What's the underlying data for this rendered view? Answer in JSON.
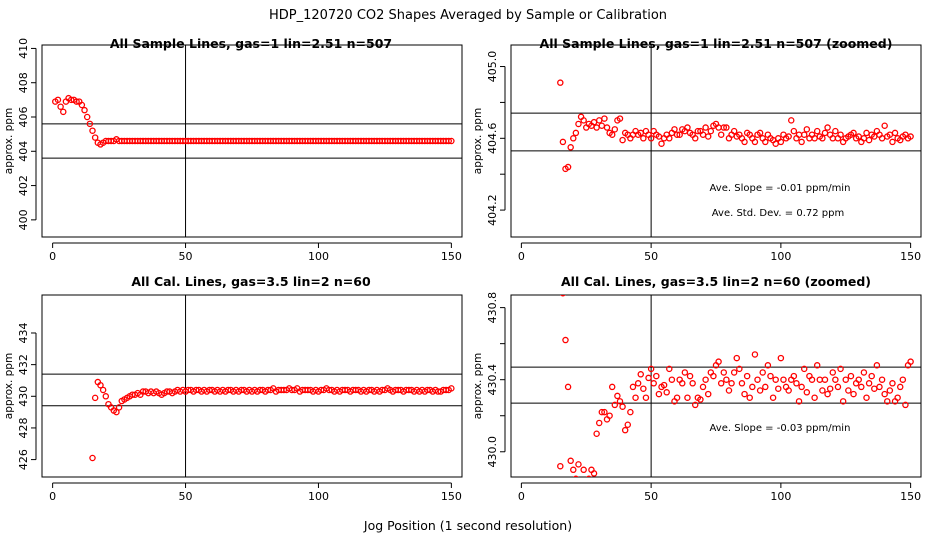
{
  "title": "HDP_120720  CO2 Shapes Averaged by Sample or Calibration",
  "xlabel": "Jog Position (1 second resolution)",
  "chart_data": [
    {
      "type": "scatter",
      "title": "All Sample Lines, gas=1 lin=2.51 n=507",
      "ylabel": "approx. ppm",
      "xlim": [
        -4,
        154
      ],
      "ylim": [
        399.0,
        410.2
      ],
      "xticks": [
        0,
        50,
        100,
        150
      ],
      "yticks": [
        400,
        402,
        404,
        406,
        408,
        410
      ],
      "ytick_labels": [
        "400",
        "402",
        "404",
        "406",
        "408",
        "410"
      ],
      "hlines": [
        405.6,
        403.6
      ],
      "vline": 50,
      "annotations": [],
      "x": [
        1,
        2,
        3,
        4,
        5,
        6,
        7,
        8,
        9,
        10,
        11,
        12,
        13,
        14,
        15,
        16,
        17,
        18,
        19,
        20,
        21,
        22,
        23,
        24,
        25,
        26,
        27,
        28,
        29,
        30,
        31,
        32,
        33,
        34,
        35,
        36,
        37,
        38,
        39,
        40,
        41,
        42,
        43,
        44,
        45,
        46,
        47,
        48,
        49,
        50,
        51,
        52,
        53,
        54,
        55,
        56,
        57,
        58,
        59,
        60,
        61,
        62,
        63,
        64,
        65,
        66,
        67,
        68,
        69,
        70,
        71,
        72,
        73,
        74,
        75,
        76,
        77,
        78,
        79,
        80,
        81,
        82,
        83,
        84,
        85,
        86,
        87,
        88,
        89,
        90,
        91,
        92,
        93,
        94,
        95,
        96,
        97,
        98,
        99,
        100,
        101,
        102,
        103,
        104,
        105,
        106,
        107,
        108,
        109,
        110,
        111,
        112,
        113,
        114,
        115,
        116,
        117,
        118,
        119,
        120,
        121,
        122,
        123,
        124,
        125,
        126,
        127,
        128,
        129,
        130,
        131,
        132,
        133,
        134,
        135,
        136,
        137,
        138,
        139,
        140,
        141,
        142,
        143,
        144,
        145,
        146,
        147,
        148,
        149,
        150
      ],
      "y": [
        406.9,
        407.0,
        406.6,
        406.3,
        406.9,
        407.1,
        407.0,
        407.0,
        406.9,
        406.9,
        406.7,
        406.4,
        406.0,
        405.6,
        405.2,
        404.8,
        404.5,
        404.4,
        404.5,
        404.6,
        404.6,
        404.6,
        404.6,
        404.7,
        404.6,
        404.6,
        404.6,
        404.6,
        404.6,
        404.6,
        404.6,
        404.6,
        404.6,
        404.6,
        404.6,
        404.6,
        404.6,
        404.6,
        404.6,
        404.6,
        404.6,
        404.6,
        404.6,
        404.6,
        404.6,
        404.6,
        404.6,
        404.6,
        404.6,
        404.6,
        404.6,
        404.6,
        404.6,
        404.6,
        404.6,
        404.6,
        404.6,
        404.6,
        404.6,
        404.6,
        404.6,
        404.6,
        404.6,
        404.6,
        404.6,
        404.6,
        404.6,
        404.6,
        404.6,
        404.6,
        404.6,
        404.6,
        404.6,
        404.6,
        404.6,
        404.6,
        404.6,
        404.6,
        404.6,
        404.6,
        404.6,
        404.6,
        404.6,
        404.6,
        404.6,
        404.6,
        404.6,
        404.6,
        404.6,
        404.6,
        404.6,
        404.6,
        404.6,
        404.6,
        404.6,
        404.6,
        404.6,
        404.6,
        404.6,
        404.6,
        404.6,
        404.6,
        404.6,
        404.6,
        404.6,
        404.6,
        404.6,
        404.6,
        404.6,
        404.6,
        404.6,
        404.6,
        404.6,
        404.6,
        404.6,
        404.6,
        404.6,
        404.6,
        404.6,
        404.6,
        404.6,
        404.6,
        404.6,
        404.6,
        404.6,
        404.6,
        404.6,
        404.6,
        404.6,
        404.6,
        404.6,
        404.6,
        404.6,
        404.6,
        404.6,
        404.6,
        404.6,
        404.6,
        404.6,
        404.6,
        404.6,
        404.6,
        404.6,
        404.6,
        404.6,
        404.6,
        404.6,
        404.6,
        404.6,
        404.6
      ]
    },
    {
      "type": "scatter",
      "title": "All Sample Lines, gas=1 lin=2.51 n=507 (zoomed)",
      "ylabel": "approx. ppm",
      "xlim": [
        -4,
        154
      ],
      "ylim": [
        404.05,
        405.12
      ],
      "xticks": [
        0,
        50,
        100,
        150
      ],
      "yticks": [
        404.2,
        404.4,
        404.6,
        404.8,
        405.0
      ],
      "ytick_labels": [
        "404.2",
        "",
        "404.6",
        "",
        "405.0"
      ],
      "hlines": [
        404.74,
        404.53
      ],
      "vline": 50,
      "annotations": [
        "Ave. Slope =  -0.01  ppm/min",
        "Ave. Std. Dev. =  0.72  ppm"
      ],
      "x": [
        15,
        16,
        17,
        18,
        19,
        20,
        21,
        22,
        23,
        24,
        25,
        26,
        27,
        28,
        29,
        30,
        31,
        32,
        33,
        34,
        35,
        36,
        37,
        38,
        39,
        40,
        41,
        42,
        43,
        44,
        45,
        46,
        47,
        48,
        49,
        50,
        51,
        52,
        53,
        54,
        55,
        56,
        57,
        58,
        59,
        60,
        61,
        62,
        63,
        64,
        65,
        66,
        67,
        68,
        69,
        70,
        71,
        72,
        73,
        74,
        75,
        76,
        77,
        78,
        79,
        80,
        81,
        82,
        83,
        84,
        85,
        86,
        87,
        88,
        89,
        90,
        91,
        92,
        93,
        94,
        95,
        96,
        97,
        98,
        99,
        100,
        101,
        102,
        103,
        104,
        105,
        106,
        107,
        108,
        109,
        110,
        111,
        112,
        113,
        114,
        115,
        116,
        117,
        118,
        119,
        120,
        121,
        122,
        123,
        124,
        125,
        126,
        127,
        128,
        129,
        130,
        131,
        132,
        133,
        134,
        135,
        136,
        137,
        138,
        139,
        140,
        141,
        142,
        143,
        144,
        145,
        146,
        147,
        148,
        149,
        150
      ],
      "y": [
        404.91,
        404.58,
        404.43,
        404.44,
        404.55,
        404.6,
        404.63,
        404.68,
        404.72,
        404.7,
        404.66,
        404.68,
        404.67,
        404.69,
        404.66,
        404.7,
        404.67,
        404.71,
        404.66,
        404.63,
        404.62,
        404.65,
        404.7,
        404.71,
        404.59,
        404.63,
        404.62,
        404.6,
        404.62,
        404.64,
        404.62,
        404.63,
        404.6,
        404.64,
        404.62,
        404.6,
        404.64,
        404.62,
        404.61,
        404.57,
        404.6,
        404.62,
        404.6,
        404.63,
        404.65,
        404.62,
        404.62,
        404.65,
        404.64,
        404.66,
        404.63,
        404.62,
        404.6,
        404.64,
        404.64,
        404.62,
        404.66,
        404.61,
        404.64,
        404.67,
        404.68,
        404.66,
        404.62,
        404.66,
        404.66,
        404.6,
        404.62,
        404.64,
        404.61,
        404.62,
        404.6,
        404.58,
        404.63,
        404.62,
        404.6,
        404.58,
        404.62,
        404.63,
        404.6,
        404.58,
        404.62,
        404.6,
        404.59,
        404.57,
        404.6,
        404.58,
        404.62,
        404.6,
        404.61,
        404.7,
        404.64,
        404.6,
        404.62,
        404.58,
        404.62,
        404.65,
        404.6,
        404.62,
        404.6,
        404.64,
        404.61,
        404.6,
        404.63,
        404.66,
        404.62,
        404.6,
        404.64,
        404.6,
        404.62,
        404.58,
        404.6,
        404.61,
        404.62,
        404.63,
        404.6,
        404.61,
        404.58,
        404.6,
        404.63,
        404.59,
        404.62,
        404.61,
        404.64,
        404.62,
        404.6,
        404.67,
        404.61,
        404.62,
        404.58,
        404.63,
        404.6,
        404.59,
        404.61,
        404.62,
        404.6,
        404.61
      ]
    },
    {
      "type": "scatter",
      "title": "All Cal. Lines, gas=3.5 lin=2 n=60",
      "ylabel": "approx. ppm",
      "xlim": [
        -4,
        154
      ],
      "ylim": [
        424.9,
        436.4
      ],
      "xticks": [
        0,
        50,
        100,
        150
      ],
      "yticks": [
        426,
        428,
        430,
        432,
        434
      ],
      "ytick_labels": [
        "426",
        "428",
        "430",
        "432",
        "434"
      ],
      "hlines": [
        431.4,
        429.4
      ],
      "vline": 50,
      "annotations": [],
      "x": [
        15,
        16,
        17,
        18,
        19,
        20,
        21,
        22,
        23,
        24,
        25,
        26,
        27,
        28,
        29,
        30,
        31,
        32,
        33,
        34,
        35,
        36,
        37,
        38,
        39,
        40,
        41,
        42,
        43,
        44,
        45,
        46,
        47,
        48,
        49,
        50,
        51,
        52,
        53,
        54,
        55,
        56,
        57,
        58,
        59,
        60,
        61,
        62,
        63,
        64,
        65,
        66,
        67,
        68,
        69,
        70,
        71,
        72,
        73,
        74,
        75,
        76,
        77,
        78,
        79,
        80,
        81,
        82,
        83,
        84,
        85,
        86,
        87,
        88,
        89,
        90,
        91,
        92,
        93,
        94,
        95,
        96,
        97,
        98,
        99,
        100,
        101,
        102,
        103,
        104,
        105,
        106,
        107,
        108,
        109,
        110,
        111,
        112,
        113,
        114,
        115,
        116,
        117,
        118,
        119,
        120,
        121,
        122,
        123,
        124,
        125,
        126,
        127,
        128,
        129,
        130,
        131,
        132,
        133,
        134,
        135,
        136,
        137,
        138,
        139,
        140,
        141,
        142,
        143,
        144,
        145,
        146,
        147,
        148,
        149,
        150
      ],
      "y": [
        426.1,
        429.9,
        430.9,
        430.7,
        430.4,
        430.0,
        429.5,
        429.3,
        429.1,
        429.0,
        429.3,
        429.7,
        429.8,
        429.9,
        430.0,
        430.1,
        430.1,
        430.2,
        430.1,
        430.3,
        430.3,
        430.2,
        430.3,
        430.2,
        430.3,
        430.2,
        430.1,
        430.2,
        430.3,
        430.3,
        430.2,
        430.3,
        430.4,
        430.3,
        430.4,
        430.3,
        430.4,
        430.4,
        430.3,
        430.4,
        430.4,
        430.3,
        430.4,
        430.3,
        430.4,
        430.4,
        430.3,
        430.4,
        430.3,
        430.4,
        430.3,
        430.4,
        430.4,
        430.3,
        430.4,
        430.3,
        430.4,
        430.4,
        430.3,
        430.4,
        430.3,
        430.4,
        430.3,
        430.4,
        430.4,
        430.3,
        430.4,
        430.4,
        430.5,
        430.3,
        430.4,
        430.4,
        430.4,
        430.4,
        430.5,
        430.4,
        430.4,
        430.5,
        430.3,
        430.4,
        430.4,
        430.4,
        430.4,
        430.3,
        430.4,
        430.3,
        430.4,
        430.4,
        430.5,
        430.4,
        430.4,
        430.3,
        430.4,
        430.3,
        430.4,
        430.4,
        430.4,
        430.3,
        430.4,
        430.4,
        430.4,
        430.3,
        430.4,
        430.3,
        430.4,
        430.4,
        430.3,
        430.4,
        430.3,
        430.4,
        430.4,
        430.5,
        430.4,
        430.3,
        430.4,
        430.4,
        430.4,
        430.3,
        430.4,
        430.4,
        430.4,
        430.3,
        430.4,
        430.3,
        430.4,
        430.3,
        430.4,
        430.4,
        430.3,
        430.4,
        430.3,
        430.3,
        430.4,
        430.4,
        430.4,
        430.5
      ]
    },
    {
      "type": "scatter",
      "title": "All Cal. Lines, gas=3.5 lin=2 n=60 (zoomed)",
      "ylabel": "approx. ppm",
      "xlim": [
        -4,
        154
      ],
      "ylim": [
        429.86,
        430.87
      ],
      "xticks": [
        0,
        50,
        100,
        150
      ],
      "yticks": [
        430.0,
        430.2,
        430.4,
        430.6,
        430.8
      ],
      "ytick_labels": [
        "430.0",
        "",
        "430.4",
        "",
        "430.8"
      ],
      "hlines": [
        430.47,
        430.27
      ],
      "vline": 50,
      "annotations": [
        "Ave. Slope =  -0.03  ppm/min"
      ],
      "x": [
        15,
        16,
        17,
        18,
        19,
        20,
        21,
        22,
        23,
        24,
        25,
        26,
        27,
        28,
        29,
        30,
        31,
        32,
        33,
        34,
        35,
        36,
        37,
        38,
        39,
        40,
        41,
        42,
        43,
        44,
        45,
        46,
        47,
        48,
        49,
        50,
        51,
        52,
        53,
        54,
        55,
        56,
        57,
        58,
        59,
        60,
        61,
        62,
        63,
        64,
        65,
        66,
        67,
        68,
        69,
        70,
        71,
        72,
        73,
        74,
        75,
        76,
        77,
        78,
        79,
        80,
        81,
        82,
        83,
        84,
        85,
        86,
        87,
        88,
        89,
        90,
        91,
        92,
        93,
        94,
        95,
        96,
        97,
        98,
        99,
        100,
        101,
        102,
        103,
        104,
        105,
        106,
        107,
        108,
        109,
        110,
        111,
        112,
        113,
        114,
        115,
        116,
        117,
        118,
        119,
        120,
        121,
        122,
        123,
        124,
        125,
        126,
        127,
        128,
        129,
        130,
        131,
        132,
        133,
        134,
        135,
        136,
        137,
        138,
        139,
        140,
        141,
        142,
        143,
        144,
        145,
        146,
        147,
        148,
        149,
        150
      ],
      "y": [
        429.92,
        430.88,
        430.62,
        430.36,
        429.95,
        429.9,
        429.85,
        429.93,
        429.8,
        429.9,
        429.82,
        429.85,
        429.9,
        429.88,
        430.1,
        430.16,
        430.22,
        430.22,
        430.18,
        430.2,
        430.36,
        430.26,
        430.31,
        430.28,
        430.25,
        430.12,
        430.15,
        430.22,
        430.36,
        430.3,
        430.38,
        430.43,
        430.35,
        430.3,
        430.41,
        430.46,
        430.38,
        430.42,
        430.32,
        430.36,
        430.37,
        430.33,
        430.46,
        430.4,
        430.28,
        430.3,
        430.4,
        430.38,
        430.44,
        430.3,
        430.42,
        430.38,
        430.26,
        430.3,
        430.29,
        430.36,
        430.4,
        430.32,
        430.44,
        430.42,
        430.48,
        430.5,
        430.38,
        430.44,
        430.4,
        430.34,
        430.38,
        430.44,
        430.52,
        430.46,
        430.38,
        430.32,
        430.42,
        430.3,
        430.36,
        430.54,
        430.4,
        430.34,
        430.44,
        430.36,
        430.48,
        430.42,
        430.3,
        430.4,
        430.35,
        430.52,
        430.4,
        430.36,
        430.34,
        430.4,
        430.42,
        430.38,
        430.28,
        430.36,
        430.46,
        430.33,
        430.42,
        430.4,
        430.3,
        430.48,
        430.4,
        430.34,
        430.4,
        430.32,
        430.35,
        430.44,
        430.4,
        430.36,
        430.46,
        430.28,
        430.4,
        430.34,
        430.42,
        430.32,
        430.38,
        430.4,
        430.36,
        430.44,
        430.3,
        430.38,
        430.42,
        430.35,
        430.48,
        430.36,
        430.4,
        430.32,
        430.28,
        430.34,
        430.38,
        430.28,
        430.3,
        430.36,
        430.4,
        430.26,
        430.48,
        430.5
      ]
    }
  ],
  "colors": {
    "points": "#ff0000",
    "lines": "#000000",
    "background": "#ffffff"
  }
}
